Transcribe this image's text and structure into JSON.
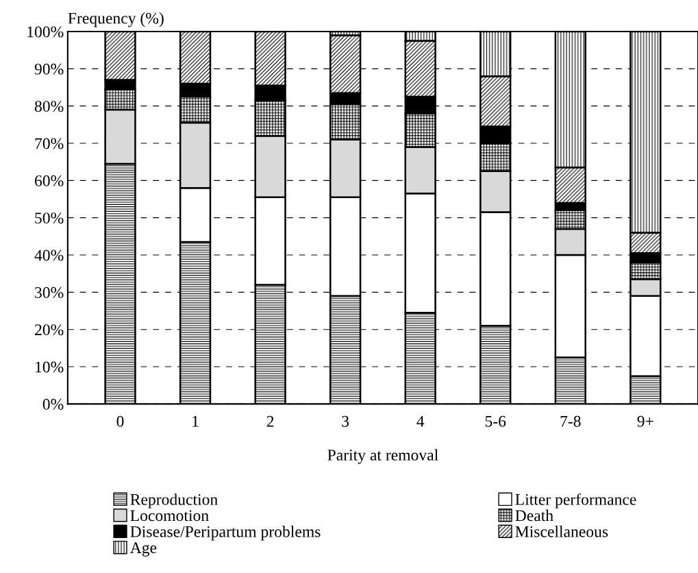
{
  "chart_data": {
    "type": "bar",
    "stacked": true,
    "ylabel": "Frequency (%)",
    "xlabel": "Parity at removal",
    "categories": [
      "0",
      "1",
      "2",
      "3",
      "4",
      "5-6",
      "7-8",
      "9+"
    ],
    "series": [
      {
        "name": "Reproduction",
        "color": "#000000",
        "values": [
          64.5,
          43.5,
          32,
          29,
          24.5,
          21,
          12.5,
          7.5
        ]
      },
      {
        "name": "Litter performance",
        "color": "#ffffff",
        "values": [
          null,
          14.5,
          23.5,
          26.5,
          32,
          30.5,
          27.5,
          21.5
        ]
      },
      {
        "name": "Locomotion",
        "color": "#d9d9d9",
        "values": [
          14.5,
          17.5,
          16.5,
          15.5,
          12.5,
          11,
          7,
          4.5
        ]
      },
      {
        "name": "Death",
        "color": "#000000",
        "values": [
          5.5,
          7,
          9.5,
          9.5,
          9,
          7.5,
          5,
          4.5
        ]
      },
      {
        "name": "Disease/Peripartum problems",
        "color": "#000000",
        "values": [
          2.5,
          3.5,
          4,
          3,
          4.5,
          4.5,
          2,
          2.5
        ]
      },
      {
        "name": "Miscellaneous",
        "color": "#000000",
        "values": [
          13,
          14,
          14.5,
          15.5,
          15,
          13.5,
          9.5,
          5.5
        ]
      },
      {
        "name": "Age",
        "color": "#000000",
        "values": [
          null,
          null,
          null,
          1,
          2.5,
          12,
          36.5,
          54
        ]
      }
    ],
    "ylim": [
      0,
      100
    ],
    "yticks": [
      {
        "value": 0,
        "label": "0%"
      },
      {
        "value": 10,
        "label": "10%"
      },
      {
        "value": 20,
        "label": "20%"
      },
      {
        "value": 30,
        "label": "30%"
      },
      {
        "value": 40,
        "label": "40%"
      },
      {
        "value": 50,
        "label": "50%"
      },
      {
        "value": 60,
        "label": "60%"
      },
      {
        "value": 70,
        "label": "70%"
      },
      {
        "value": 80,
        "label": "80%"
      },
      {
        "value": 90,
        "label": "90%"
      },
      {
        "value": 100,
        "label": "100%"
      }
    ],
    "grid": "y",
    "legend": "bottom"
  }
}
